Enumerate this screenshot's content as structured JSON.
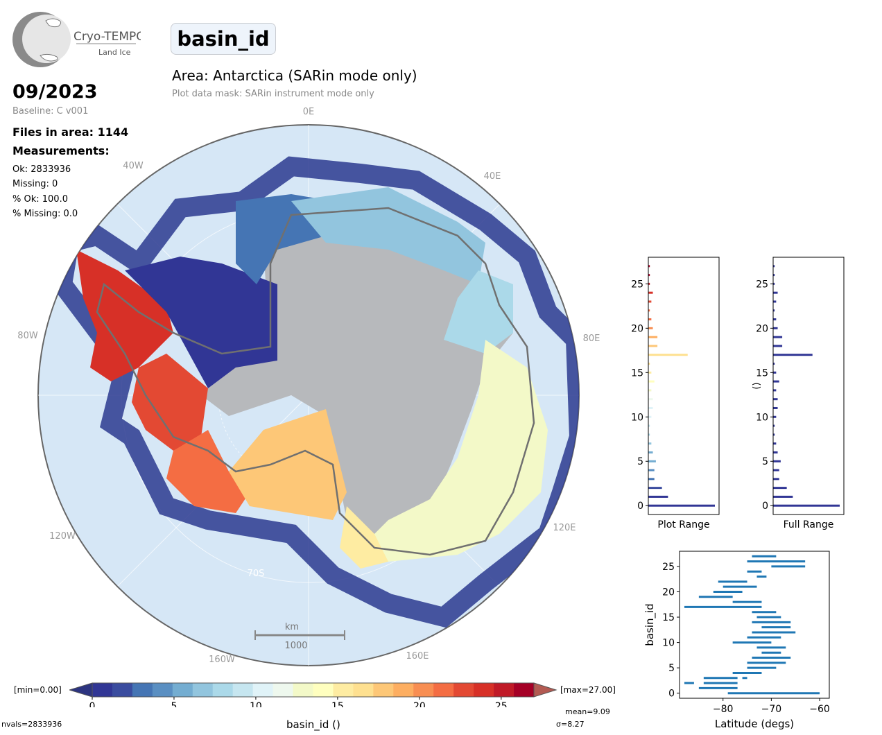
{
  "logo": {
    "name": "Cryo-TEMPO",
    "subtitle": "Land Ice"
  },
  "title_badge": "basin_id",
  "area_title": "Area: Antarctica (SARin mode only)",
  "mask_text": "Plot data mask: SARin instrument mode only",
  "date": "09/2023",
  "baseline": "Baseline: C v001",
  "files_in_area": "Files in area: 1144",
  "measurements_heading": "Measurements:",
  "stats": {
    "ok": "Ok: 2833936",
    "missing": "Missing: 0",
    "pct_ok": "% Ok: 100.0",
    "pct_missing": "% Missing: 0.0"
  },
  "map": {
    "lon_labels": [
      "0E",
      "40E",
      "80E",
      "120E",
      "160E",
      "160W",
      "120W",
      "80W",
      "40W"
    ],
    "lat_label": "70S",
    "scalebar_unit": "km",
    "scalebar_value": "1000"
  },
  "colorbar": {
    "min_label": "[min=0.00]",
    "max_label": "[max=27.00]",
    "ticks": [
      "0",
      "5",
      "10",
      "15",
      "20",
      "25"
    ],
    "label": "basin_id ()",
    "colors": [
      "#313695",
      "#3a4c9f",
      "#4575b4",
      "#5a8fc2",
      "#74add1",
      "#92c5de",
      "#abd9e9",
      "#c6e6f0",
      "#e0f3f8",
      "#eef8ee",
      "#f3f9c8",
      "#ffffbf",
      "#feeca2",
      "#fee090",
      "#fdc777",
      "#fdae61",
      "#f88e52",
      "#f46d43",
      "#e34933",
      "#d73027",
      "#c01a27",
      "#a50026"
    ]
  },
  "footer": {
    "nvals": "nvals=2833936",
    "mean": "mean=9.09",
    "sigma": "σ=8.27"
  },
  "hist_plot_range": {
    "xlabel": "Plot Range",
    "yticks": [
      "0",
      "5",
      "10",
      "15",
      "20",
      "25"
    ]
  },
  "hist_full_range": {
    "xlabel": "Full Range",
    "ylabel": "()",
    "yticks": [
      "0",
      "5",
      "10",
      "15",
      "20",
      "25"
    ]
  },
  "chart_data": [
    {
      "type": "bar",
      "orientation": "horizontal",
      "xlabel": "Plot Range",
      "ylim": [
        -1,
        28
      ],
      "y": [
        0,
        1,
        2,
        3,
        4,
        5,
        6,
        7,
        8,
        9,
        10,
        11,
        12,
        13,
        14,
        15,
        16,
        17,
        18,
        19,
        20,
        21,
        22,
        23,
        24,
        25,
        26,
        27
      ],
      "values": [
        0.44,
        0.13,
        0.09,
        0.04,
        0.04,
        0.05,
        0.03,
        0.02,
        0.01,
        0.01,
        0.02,
        0.03,
        0.03,
        0.02,
        0.04,
        0.02,
        0.01,
        0.26,
        0.06,
        0.06,
        0.03,
        0.02,
        0.01,
        0.02,
        0.03,
        0.01,
        0.01,
        0.01
      ]
    },
    {
      "type": "bar",
      "orientation": "horizontal",
      "xlabel": "Full Range",
      "ylabel": "()",
      "ylim": [
        -1,
        28
      ],
      "y": [
        0,
        1,
        2,
        3,
        4,
        5,
        6,
        7,
        8,
        9,
        10,
        11,
        12,
        13,
        14,
        15,
        16,
        17,
        18,
        19,
        20,
        21,
        22,
        23,
        24,
        25,
        26,
        27
      ],
      "values": [
        0.44,
        0.13,
        0.09,
        0.04,
        0.04,
        0.05,
        0.03,
        0.02,
        0.01,
        0.01,
        0.02,
        0.03,
        0.03,
        0.02,
        0.04,
        0.02,
        0.01,
        0.26,
        0.06,
        0.06,
        0.03,
        0.02,
        0.01,
        0.02,
        0.03,
        0.01,
        0.01,
        0.01
      ]
    },
    {
      "type": "range",
      "xlabel": "Latitude (degs)",
      "ylabel": "basin_id",
      "xlim": [
        -89,
        -58
      ],
      "ylim": [
        -1,
        28
      ],
      "xticks": [
        "−80",
        "−70",
        "−60"
      ],
      "yticks": [
        "0",
        "5",
        "10",
        "15",
        "20",
        "25"
      ],
      "ranges": [
        [
          0,
          -79,
          -60
        ],
        [
          1,
          -85,
          -77
        ],
        [
          2,
          -88,
          -86
        ],
        [
          2,
          -84,
          -77
        ],
        [
          3,
          -76,
          -75
        ],
        [
          3,
          -84,
          -77
        ],
        [
          4,
          -78,
          -72
        ],
        [
          5,
          -75,
          -69
        ],
        [
          6,
          -75,
          -67
        ],
        [
          7,
          -74,
          -66
        ],
        [
          8,
          -72,
          -68
        ],
        [
          9,
          -73,
          -67
        ],
        [
          10,
          -78,
          -70
        ],
        [
          11,
          -75,
          -68
        ],
        [
          12,
          -74,
          -65
        ],
        [
          13,
          -72,
          -66
        ],
        [
          14,
          -74,
          -66
        ],
        [
          15,
          -73,
          -68
        ],
        [
          16,
          -74,
          -69
        ],
        [
          17,
          -88,
          -72
        ],
        [
          18,
          -78,
          -72
        ],
        [
          19,
          -85,
          -78
        ],
        [
          20,
          -82,
          -76
        ],
        [
          21,
          -80,
          -73
        ],
        [
          22,
          -81,
          -75
        ],
        [
          23,
          -73,
          -71
        ],
        [
          24,
          -75,
          -72
        ],
        [
          25,
          -70,
          -63
        ],
        [
          26,
          -75,
          -63
        ],
        [
          27,
          -74,
          -69
        ]
      ]
    }
  ]
}
